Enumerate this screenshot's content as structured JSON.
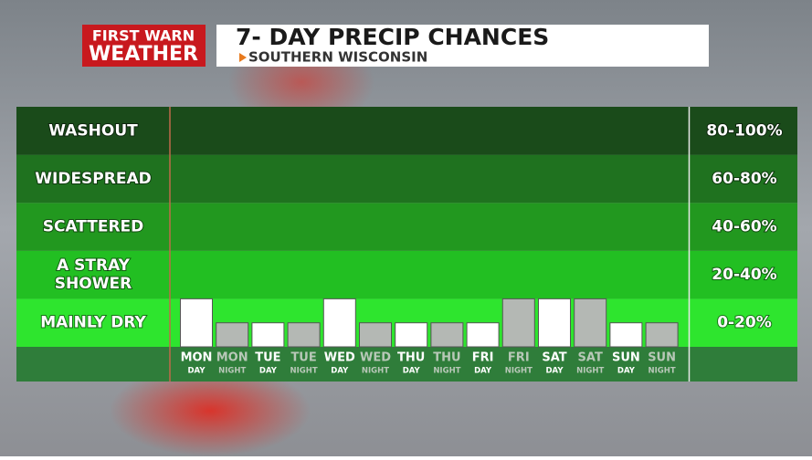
{
  "header": {
    "logo_line1": "FIRST WARN",
    "logo_line2": "WEATHER",
    "title": "7- DAY PRECIP CHANCES",
    "subtitle": "SOUTHERN WISCONSIN"
  },
  "chart_data": {
    "type": "bar",
    "categories": [
      "MON",
      "MON",
      "TUE",
      "TUE",
      "WED",
      "WED",
      "THU",
      "THU",
      "FRI",
      "FRI",
      "SAT",
      "SAT",
      "SUN",
      "SUN"
    ],
    "periods": [
      "DAY",
      "NIGHT",
      "DAY",
      "NIGHT",
      "DAY",
      "NIGHT",
      "DAY",
      "NIGHT",
      "DAY",
      "NIGHT",
      "DAY",
      "NIGHT",
      "DAY",
      "NIGHT"
    ],
    "values": [
      20,
      10,
      10,
      10,
      20,
      10,
      10,
      10,
      10,
      20,
      20,
      20,
      10,
      10
    ],
    "colors": [
      "#ffffff",
      "#b4b8b4",
      "#ffffff",
      "#b4b8b4",
      "#ffffff",
      "#b4b8b4",
      "#ffffff",
      "#b4b8b4",
      "#ffffff",
      "#b4b8b4",
      "#ffffff",
      "#b4b8b4",
      "#ffffff",
      "#b4b8b4"
    ],
    "ylim": [
      0,
      100
    ],
    "yticks": [
      0,
      20,
      40,
      60,
      80,
      100
    ],
    "bands": [
      {
        "label": "MAINLY DRY",
        "range": "0-20%",
        "color": "#2ee52e"
      },
      {
        "label": "A STRAY SHOWER",
        "range": "20-40%",
        "color": "#22bf22"
      },
      {
        "label": "SCATTERED",
        "range": "40-60%",
        "color": "#22981f"
      },
      {
        "label": "WIDESPREAD",
        "range": "60-80%",
        "color": "#1f721f"
      },
      {
        "label": "WASHOUT",
        "range": "80-100%",
        "color": "#1a4b1a"
      }
    ]
  }
}
